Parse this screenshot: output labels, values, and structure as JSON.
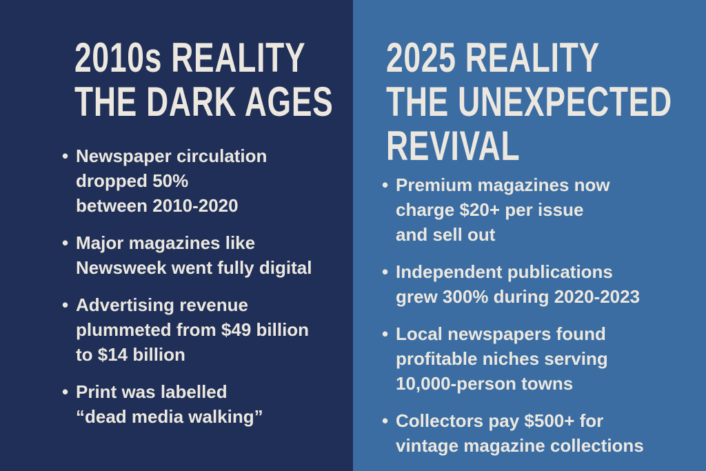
{
  "left": {
    "bg_color": "#1f2f57",
    "heading": [
      "2010s REALITY",
      "THE DARK AGES"
    ],
    "bullets": [
      "Newspaper circulation\ndropped 50%\nbetween 2010-2020",
      "Major magazines like\nNewsweek went fully digital",
      "Advertising revenue\nplummeted from $49 billion\nto $14 billion",
      "Print was labelled\n“dead media walking”"
    ]
  },
  "right": {
    "bg_color": "#3b6da2",
    "heading": [
      "2025 REALITY",
      "THE UNEXPECTED",
      "REVIVAL"
    ],
    "bullets": [
      "Premium magazines now\ncharge $20+ per issue\nand sell out",
      "Independent publications\ngrew 300% during 2020-2023",
      "Local newspapers found\nprofitable niches serving\n10,000-person towns",
      "Collectors pay $500+ for\nvintage magazine collections"
    ]
  }
}
